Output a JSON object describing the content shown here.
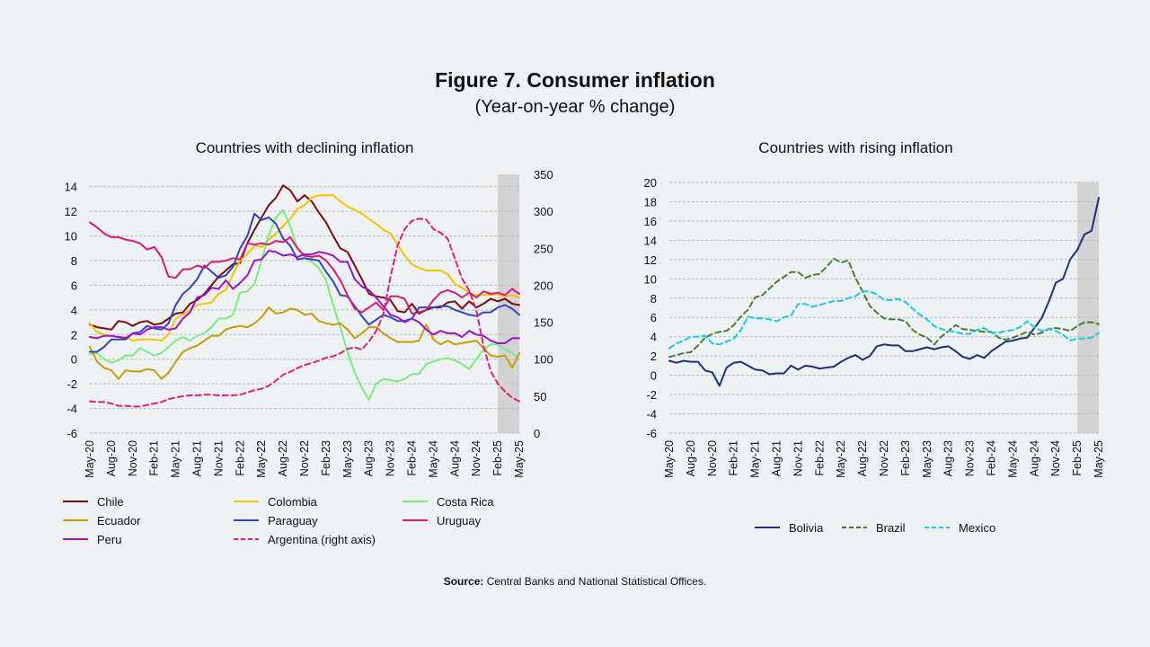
{
  "figure": {
    "title": "Figure 7. Consumer inflation",
    "subtitle": "(Year-on-year % change)",
    "source_label": "Source:",
    "source_text": "Central Banks and National Statistical Offices."
  },
  "chart_data": [
    {
      "type": "line",
      "title": "Countries with declining inflation",
      "x": [
        "May-20",
        "Jun-20",
        "Jul-20",
        "Aug-20",
        "Sep-20",
        "Oct-20",
        "Nov-20",
        "Dec-20",
        "Jan-21",
        "Feb-21",
        "Mar-21",
        "Apr-21",
        "May-21",
        "Jun-21",
        "Jul-21",
        "Aug-21",
        "Sep-21",
        "Oct-21",
        "Nov-21",
        "Dec-21",
        "Jan-22",
        "Feb-22",
        "Mar-22",
        "Apr-22",
        "May-22",
        "Jun-22",
        "Jul-22",
        "Aug-22",
        "Sep-22",
        "Oct-22",
        "Nov-22",
        "Dec-22",
        "Jan-23",
        "Feb-23",
        "Mar-23",
        "Apr-23",
        "May-23",
        "Jun-23",
        "Jul-23",
        "Aug-23",
        "Sep-23",
        "Oct-23",
        "Nov-23",
        "Dec-23",
        "Jan-24",
        "Feb-24",
        "Mar-24",
        "Apr-24",
        "May-24",
        "Jun-24",
        "Jul-24",
        "Aug-24",
        "Sep-24",
        "Oct-24",
        "Nov-24",
        "Dec-24",
        "Jan-25",
        "Feb-25",
        "Mar-25",
        "Apr-25",
        "May-25"
      ],
      "x_tick_labels": [
        "May-20",
        "Aug-20",
        "Nov-20",
        "Feb-21",
        "May-21",
        "Aug-21",
        "Nov-21",
        "Feb-22",
        "May-22",
        "Aug-22",
        "Nov-22",
        "Feb-23",
        "May-23",
        "Aug-23",
        "Nov-23",
        "Feb-24",
        "May-24",
        "Aug-24",
        "Nov-24",
        "Feb-25",
        "May-25"
      ],
      "y_left_ticks": [
        "-6",
        "-4",
        "-2",
        "0",
        "2",
        "4",
        "6",
        "8",
        "10",
        "12",
        "14"
      ],
      "y_right_ticks": [
        "0",
        "50",
        "100",
        "150",
        "200",
        "250",
        "300",
        "350"
      ],
      "ylim_left": [
        -6,
        15
      ],
      "ylim_right": [
        0,
        350
      ],
      "shaded_from": "Feb-25",
      "grid": true,
      "legend_position": "bottom",
      "series": [
        {
          "name": "Chile",
          "color": "#7b0c10",
          "dash": false,
          "axis": "left",
          "values": [
            2.8,
            2.6,
            2.5,
            2.4,
            3.1,
            3.0,
            2.7,
            3.0,
            3.1,
            2.8,
            2.9,
            3.3,
            3.7,
            3.8,
            4.5,
            4.8,
            5.3,
            6.0,
            6.7,
            7.2,
            7.7,
            7.8,
            9.4,
            10.5,
            11.5,
            12.5,
            13.1,
            14.1,
            13.7,
            12.8,
            13.3,
            12.8,
            11.9,
            11.1,
            10.0,
            9.0,
            8.7,
            7.6,
            6.5,
            5.3,
            5.1,
            5.0,
            4.8,
            3.9,
            3.8,
            4.5,
            3.7,
            4.0,
            4.2,
            4.2,
            4.6,
            4.7,
            4.1,
            4.7,
            4.2,
            4.5,
            4.9,
            4.7,
            4.9,
            4.5,
            4.4
          ]
        },
        {
          "name": "Colombia",
          "color": "#f5c200",
          "dash": false,
          "axis": "left",
          "values": [
            2.9,
            2.2,
            2.0,
            1.9,
            1.8,
            1.8,
            1.5,
            1.6,
            1.6,
            1.6,
            1.5,
            2.0,
            3.3,
            3.6,
            4.0,
            4.4,
            4.5,
            4.6,
            5.3,
            5.6,
            6.9,
            8.0,
            8.5,
            9.2,
            9.1,
            9.7,
            10.2,
            10.8,
            11.4,
            12.2,
            12.5,
            13.1,
            13.3,
            13.3,
            13.3,
            12.8,
            12.4,
            12.1,
            11.8,
            11.4,
            11.0,
            10.5,
            10.2,
            9.3,
            8.4,
            7.7,
            7.4,
            7.2,
            7.2,
            7.2,
            6.9,
            6.1,
            5.8,
            5.4,
            5.2,
            5.2,
            5.2,
            5.3,
            5.1,
            5.2,
            5.0
          ]
        },
        {
          "name": "Costa Rica",
          "color": "#7deb7d",
          "dash": false,
          "axis": "left",
          "values": [
            0.4,
            0.5,
            0.0,
            -0.3,
            -0.1,
            0.3,
            0.3,
            0.9,
            0.6,
            0.3,
            0.5,
            1.0,
            1.5,
            1.8,
            1.5,
            1.9,
            2.1,
            2.6,
            3.3,
            3.3,
            3.6,
            5.4,
            5.5,
            6.1,
            8.0,
            10.1,
            11.5,
            12.1,
            10.8,
            9.0,
            8.2,
            7.9,
            7.4,
            6.4,
            4.4,
            2.6,
            0.6,
            -1.1,
            -2.3,
            -3.3,
            -2.0,
            -1.6,
            -1.7,
            -1.8,
            -1.6,
            -1.2,
            -1.2,
            -0.4,
            -0.2,
            0.0,
            0.1,
            -0.1,
            -0.4,
            -0.8,
            0.0,
            0.8,
            1.2,
            1.2,
            0.8,
            0.5,
            0.0
          ]
        },
        {
          "name": "Ecuador",
          "color": "#c99a0c",
          "dash": false,
          "axis": "left",
          "values": [
            1.0,
            -0.2,
            -0.7,
            -0.9,
            -1.6,
            -0.9,
            -1.0,
            -1.0,
            -0.8,
            -0.9,
            -1.6,
            -1.1,
            -0.2,
            0.6,
            0.9,
            1.1,
            1.5,
            1.9,
            1.9,
            2.4,
            2.6,
            2.7,
            2.6,
            2.9,
            3.4,
            4.2,
            3.7,
            3.8,
            4.1,
            4.0,
            3.6,
            3.7,
            3.1,
            2.9,
            2.8,
            2.9,
            2.4,
            1.7,
            2.1,
            2.6,
            2.6,
            2.1,
            1.7,
            1.4,
            1.4,
            1.4,
            1.5,
            2.8,
            1.6,
            1.2,
            1.5,
            1.2,
            1.3,
            1.4,
            1.5,
            0.9,
            0.3,
            0.2,
            0.3,
            -0.7,
            0.5
          ]
        },
        {
          "name": "Paraguay",
          "color": "#3344bb",
          "dash": false,
          "axis": "left",
          "values": [
            0.6,
            0.6,
            1.0,
            1.6,
            1.6,
            1.6,
            2.1,
            2.2,
            2.7,
            2.5,
            2.4,
            2.9,
            4.4,
            5.3,
            5.8,
            6.5,
            7.6,
            7.1,
            6.6,
            6.8,
            7.5,
            9.0,
            10.0,
            11.8,
            11.3,
            11.5,
            11.0,
            9.8,
            9.2,
            8.1,
            8.2,
            8.1,
            8.0,
            7.1,
            6.3,
            5.2,
            5.1,
            4.3,
            3.5,
            2.8,
            3.2,
            3.6,
            3.4,
            3.1,
            3.1,
            3.3,
            4.2,
            4.2,
            4.2,
            4.3,
            4.3,
            4.0,
            3.8,
            3.6,
            3.5,
            3.8,
            3.8,
            4.2,
            4.4,
            4.1,
            3.6
          ]
        },
        {
          "name": "Uruguay",
          "color": "#d81b73",
          "dash": false,
          "axis": "left",
          "values": [
            11.1,
            10.7,
            10.2,
            9.9,
            9.9,
            9.7,
            9.6,
            9.4,
            8.9,
            9.1,
            8.3,
            6.7,
            6.6,
            7.3,
            7.3,
            7.6,
            7.4,
            7.9,
            7.9,
            8.0,
            8.2,
            8.1,
            9.4,
            9.3,
            9.4,
            9.3,
            9.6,
            9.5,
            9.9,
            9.0,
            8.4,
            8.3,
            8.4,
            8.0,
            7.3,
            6.4,
            5.2,
            4.1,
            3.8,
            4.2,
            4.6,
            4.0,
            5.1,
            5.1,
            4.9,
            3.7,
            3.8,
            4.0,
            4.8,
            5.4,
            5.6,
            5.4,
            5.0,
            5.4,
            5.0,
            5.5,
            5.3,
            5.4,
            5.2,
            5.7,
            5.3
          ]
        },
        {
          "name": "Peru",
          "color": "#9b12c9",
          "dash": false,
          "axis": "left",
          "values": [
            1.8,
            1.7,
            1.9,
            1.9,
            1.8,
            1.7,
            2.1,
            2.0,
            2.4,
            2.6,
            2.6,
            2.4,
            2.5,
            3.3,
            3.8,
            5.0,
            5.2,
            5.8,
            5.7,
            6.4,
            5.7,
            6.2,
            6.8,
            8.0,
            8.1,
            8.8,
            8.7,
            8.4,
            8.5,
            8.3,
            8.5,
            8.5,
            8.7,
            8.6,
            8.4,
            7.9,
            7.9,
            6.5,
            5.9,
            5.6,
            5.0,
            4.3,
            3.6,
            3.4,
            3.0,
            3.3,
            3.0,
            2.4,
            2.0,
            2.3,
            2.1,
            2.1,
            1.8,
            2.3,
            2.0,
            1.9,
            1.5,
            1.3,
            1.3,
            1.7,
            1.7
          ]
        },
        {
          "name": "Argentina (right axis)",
          "color": "#e0207a",
          "dash": true,
          "axis": "right",
          "values": [
            43,
            42,
            42,
            40,
            37,
            37,
            36,
            36,
            38,
            40,
            42,
            46,
            48,
            50,
            51,
            51,
            52,
            52,
            51,
            51,
            51,
            52,
            55,
            58,
            60,
            64,
            71,
            79,
            83,
            88,
            92,
            95,
            98,
            102,
            104,
            108,
            114,
            116,
            113,
            124,
            138,
            160,
            211,
            254,
            276,
            287,
            290,
            289,
            276,
            271,
            263,
            236,
            209,
            193,
            166,
            118,
            84,
            67,
            56,
            48,
            43
          ]
        }
      ]
    },
    {
      "type": "line",
      "title": "Countries with rising inflation",
      "x": [
        "May-20",
        "Jun-20",
        "Jul-20",
        "Aug-20",
        "Sep-20",
        "Oct-20",
        "Nov-20",
        "Dec-20",
        "Jan-21",
        "Feb-21",
        "Mar-21",
        "Apr-21",
        "May-21",
        "Jun-21",
        "Jul-21",
        "Aug-21",
        "Sep-21",
        "Oct-21",
        "Nov-21",
        "Dec-21",
        "Jan-22",
        "Feb-22",
        "Mar-22",
        "Apr-22",
        "May-22",
        "Jun-22",
        "Jul-22",
        "Aug-22",
        "Sep-22",
        "Oct-22",
        "Nov-22",
        "Dec-22",
        "Jan-23",
        "Feb-23",
        "Mar-23",
        "Apr-23",
        "May-23",
        "Jun-23",
        "Jul-23",
        "Aug-23",
        "Sep-23",
        "Oct-23",
        "Nov-23",
        "Dec-23",
        "Jan-24",
        "Feb-24",
        "Mar-24",
        "Apr-24",
        "May-24",
        "Jun-24",
        "Jul-24",
        "Aug-24",
        "Sep-24",
        "Oct-24",
        "Nov-24",
        "Dec-24",
        "Jan-25",
        "Feb-25",
        "Mar-25",
        "Apr-25",
        "May-25"
      ],
      "x_tick_labels": [
        "May-20",
        "Aug-20",
        "Nov-20",
        "Feb-21",
        "May-21",
        "Aug-21",
        "Nov-21",
        "Feb-22",
        "May-22",
        "Aug-22",
        "Nov-22",
        "Feb-23",
        "May-23",
        "Aug-23",
        "Nov-23",
        "Feb-24",
        "May-24",
        "Aug-24",
        "Nov-24",
        "Feb-25",
        "May-25"
      ],
      "y_ticks": [
        "-6",
        "-4",
        "-2",
        "0",
        "2",
        "4",
        "6",
        "8",
        "10",
        "12",
        "14",
        "16",
        "18",
        "20"
      ],
      "ylim": [
        -6,
        20
      ],
      "shaded_from": "Feb-25",
      "grid": true,
      "legend_position": "bottom",
      "series": [
        {
          "name": "Bolivia",
          "color": "#1f2f78",
          "dash": false,
          "values": [
            1.5,
            1.3,
            1.5,
            1.4,
            1.4,
            0.5,
            0.3,
            -1.1,
            0.8,
            1.3,
            1.4,
            1.0,
            0.6,
            0.5,
            0.1,
            0.2,
            0.2,
            1.0,
            0.6,
            1.0,
            0.9,
            0.7,
            0.8,
            0.9,
            1.4,
            1.8,
            2.1,
            1.6,
            2.0,
            3.0,
            3.2,
            3.1,
            3.1,
            2.5,
            2.5,
            2.7,
            2.9,
            2.7,
            2.9,
            3.0,
            2.5,
            1.9,
            1.7,
            2.1,
            1.8,
            2.5,
            3.0,
            3.5,
            3.6,
            3.8,
            3.9,
            4.9,
            5.9,
            7.6,
            9.6,
            10.0,
            12.0,
            13.0,
            14.6,
            15.0,
            18.4
          ]
        },
        {
          "name": "Brazil",
          "color": "#4d7a33",
          "dash": true,
          "values": [
            1.9,
            2.1,
            2.3,
            2.4,
            3.1,
            3.9,
            4.3,
            4.5,
            4.6,
            5.2,
            6.1,
            6.8,
            8.1,
            8.3,
            9.0,
            9.7,
            10.2,
            10.7,
            10.7,
            10.1,
            10.4,
            10.5,
            11.3,
            12.1,
            11.7,
            11.9,
            10.1,
            8.7,
            7.2,
            6.5,
            5.9,
            5.8,
            5.8,
            5.6,
            4.7,
            4.2,
            3.9,
            3.2,
            4.0,
            4.6,
            5.2,
            4.8,
            4.7,
            4.6,
            4.5,
            4.5,
            3.9,
            3.7,
            3.9,
            4.2,
            4.5,
            4.2,
            4.4,
            4.8,
            4.9,
            4.8,
            4.6,
            5.1,
            5.5,
            5.5,
            5.3
          ]
        },
        {
          "name": "Mexico",
          "color": "#1ec8e0",
          "dash": true,
          "values": [
            2.8,
            3.3,
            3.6,
            4.0,
            4.0,
            4.1,
            3.3,
            3.2,
            3.5,
            3.8,
            4.7,
            6.1,
            5.9,
            5.9,
            5.8,
            5.6,
            6.0,
            6.2,
            7.4,
            7.4,
            7.1,
            7.3,
            7.5,
            7.7,
            7.7,
            8.0,
            8.2,
            8.7,
            8.7,
            8.4,
            7.8,
            7.8,
            7.9,
            7.6,
            6.9,
            6.3,
            5.8,
            5.1,
            4.8,
            4.6,
            4.5,
            4.3,
            4.3,
            4.7,
            4.9,
            4.4,
            4.4,
            4.6,
            4.7,
            5.0,
            5.6,
            5.0,
            4.6,
            4.8,
            4.6,
            4.2,
            3.6,
            3.8,
            3.8,
            3.9,
            4.4
          ]
        }
      ]
    }
  ]
}
